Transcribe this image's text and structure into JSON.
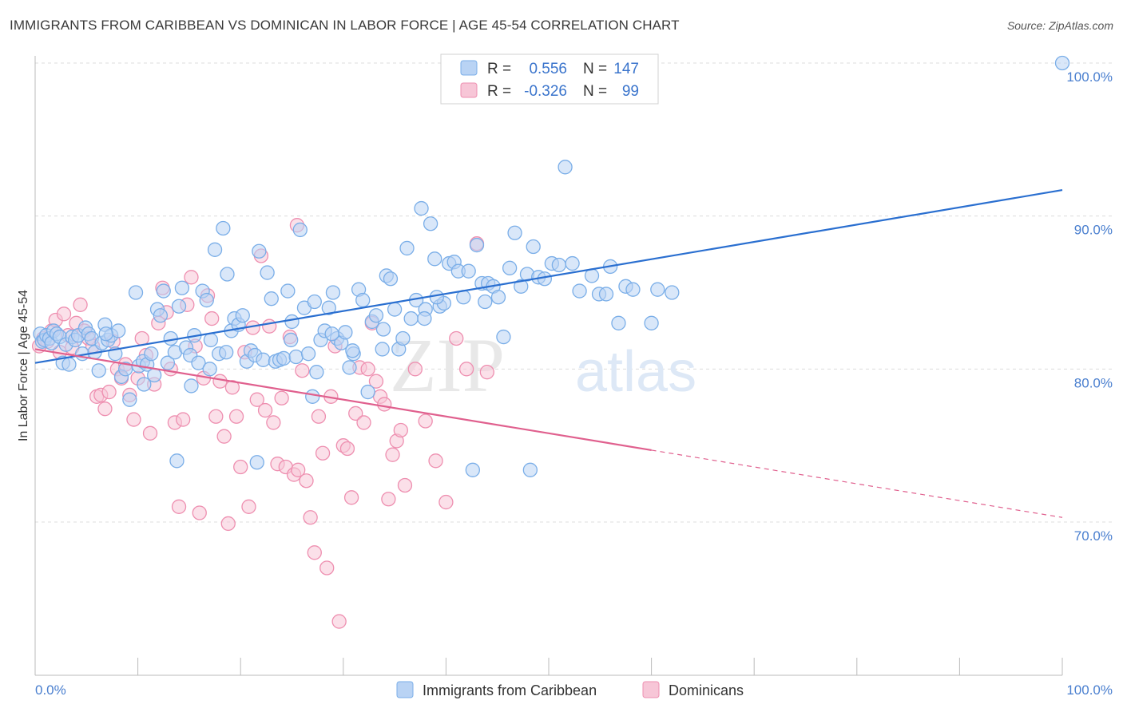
{
  "title": "IMMIGRANTS FROM CARIBBEAN VS DOMINICAN IN LABOR FORCE | AGE 45-54 CORRELATION CHART",
  "source": "Source: ZipAtlas.com",
  "watermark": {
    "zip": "ZIP",
    "atlas": "atlas"
  },
  "colors": {
    "blue": "#7aaee8",
    "blue_fill": "#b9d3f4",
    "blue_line": "#2a6fd0",
    "pink": "#ee8fb0",
    "pink_fill": "#f7c6d7",
    "pink_line": "#e0608e",
    "grid": "#dcdcdc",
    "tick_text": "#4a7fcf"
  },
  "legend": {
    "rows": [
      {
        "r_label": "R =",
        "r_value": "0.556",
        "n_label": "N =",
        "n_value": "147"
      },
      {
        "r_label": "R =",
        "r_value": "-0.326",
        "n_label": "N =",
        "n_value": "99"
      }
    ]
  },
  "chart_data": {
    "type": "scatter",
    "title": "IMMIGRANTS FROM CARIBBEAN VS DOMINICAN IN LABOR FORCE | AGE 45-54 CORRELATION CHART",
    "xlabel": "",
    "ylabel": "In Labor Force | Age 45-54",
    "xlim": [
      0,
      100
    ],
    "ylim": [
      60.5,
      101
    ],
    "x_tick_labels": [
      "0.0%",
      "100.0%"
    ],
    "y_ticks": [
      70,
      80,
      90,
      100
    ],
    "y_tick_labels": [
      "70.0%",
      "80.0%",
      "90.0%",
      "100.0%"
    ],
    "grid": true,
    "legend_position": "bottom-center",
    "series": [
      {
        "name": "Immigrants from Caribbean",
        "color": "#7aaee8",
        "trend": {
          "x": [
            0,
            100
          ],
          "y": [
            80.4,
            91.7
          ],
          "dashed_from": null
        },
        "points": [
          [
            0.5,
            82.3
          ],
          [
            0.7,
            81.8
          ],
          [
            0.9,
            81.9
          ],
          [
            1.1,
            82.2
          ],
          [
            1.4,
            82.0
          ],
          [
            1.6,
            81.7
          ],
          [
            1.8,
            82.5
          ],
          [
            2.1,
            82.3
          ],
          [
            2.4,
            82.1
          ],
          [
            2.7,
            80.4
          ],
          [
            3.0,
            81.6
          ],
          [
            3.3,
            80.3
          ],
          [
            3.6,
            82.1
          ],
          [
            3.9,
            81.9
          ],
          [
            4.2,
            82.2
          ],
          [
            4.6,
            81.0
          ],
          [
            4.9,
            82.7
          ],
          [
            5.2,
            82.3
          ],
          [
            5.5,
            82.0
          ],
          [
            5.8,
            81.1
          ],
          [
            6.2,
            79.9
          ],
          [
            6.5,
            81.7
          ],
          [
            6.8,
            82.9
          ],
          [
            7.1,
            81.9
          ],
          [
            7.4,
            82.2
          ],
          [
            7.8,
            81.0
          ],
          [
            8.1,
            82.5
          ],
          [
            8.4,
            79.5
          ],
          [
            8.8,
            80.0
          ],
          [
            9.2,
            78.0
          ],
          [
            9.8,
            85.0
          ],
          [
            10.1,
            80.2
          ],
          [
            10.5,
            80.5
          ],
          [
            10.9,
            80.3
          ],
          [
            11.3,
            81.0
          ],
          [
            11.6,
            79.6
          ],
          [
            11.9,
            83.9
          ],
          [
            12.2,
            83.5
          ],
          [
            12.5,
            85.1
          ],
          [
            12.9,
            80.4
          ],
          [
            13.2,
            82.0
          ],
          [
            13.6,
            81.1
          ],
          [
            14.0,
            84.1
          ],
          [
            14.3,
            85.3
          ],
          [
            14.7,
            81.4
          ],
          [
            15.1,
            80.9
          ],
          [
            15.5,
            82.2
          ],
          [
            15.9,
            80.4
          ],
          [
            16.3,
            85.1
          ],
          [
            16.7,
            84.5
          ],
          [
            17.1,
            81.9
          ],
          [
            17.5,
            87.8
          ],
          [
            17.9,
            81.0
          ],
          [
            18.3,
            89.2
          ],
          [
            18.7,
            86.2
          ],
          [
            19.1,
            82.5
          ],
          [
            19.4,
            83.3
          ],
          [
            19.8,
            82.9
          ],
          [
            20.2,
            83.5
          ],
          [
            20.6,
            80.5
          ],
          [
            21.0,
            81.2
          ],
          [
            21.4,
            80.9
          ],
          [
            21.8,
            87.7
          ],
          [
            22.2,
            80.6
          ],
          [
            22.6,
            86.3
          ],
          [
            23.0,
            84.6
          ],
          [
            23.4,
            80.5
          ],
          [
            23.8,
            80.6
          ],
          [
            24.2,
            80.7
          ],
          [
            24.6,
            85.1
          ],
          [
            25.0,
            83.1
          ],
          [
            25.4,
            80.8
          ],
          [
            25.8,
            89.1
          ],
          [
            26.2,
            84.0
          ],
          [
            26.6,
            81.0
          ],
          [
            27.0,
            78.2
          ],
          [
            27.4,
            79.8
          ],
          [
            27.8,
            81.9
          ],
          [
            28.2,
            82.5
          ],
          [
            28.6,
            84.0
          ],
          [
            29.0,
            85.0
          ],
          [
            29.4,
            82.0
          ],
          [
            29.8,
            81.7
          ],
          [
            30.2,
            82.4
          ],
          [
            30.6,
            80.1
          ],
          [
            31.0,
            81.0
          ],
          [
            31.5,
            85.2
          ],
          [
            31.9,
            84.5
          ],
          [
            32.4,
            78.5
          ],
          [
            32.8,
            83.1
          ],
          [
            33.2,
            83.5
          ],
          [
            33.8,
            81.3
          ],
          [
            34.2,
            86.1
          ],
          [
            34.6,
            85.9
          ],
          [
            35.0,
            83.9
          ],
          [
            35.4,
            81.3
          ],
          [
            35.8,
            82.0
          ],
          [
            36.2,
            87.9
          ],
          [
            36.6,
            83.3
          ],
          [
            37.1,
            84.5
          ],
          [
            37.6,
            90.5
          ],
          [
            38.0,
            83.9
          ],
          [
            38.5,
            89.5
          ],
          [
            38.9,
            87.2
          ],
          [
            39.4,
            84.1
          ],
          [
            39.8,
            84.3
          ],
          [
            40.3,
            86.9
          ],
          [
            40.8,
            87.0
          ],
          [
            41.2,
            86.4
          ],
          [
            41.7,
            84.7
          ],
          [
            42.2,
            86.4
          ],
          [
            42.6,
            73.4
          ],
          [
            43.0,
            88.1
          ],
          [
            43.5,
            85.6
          ],
          [
            44.1,
            85.6
          ],
          [
            44.6,
            85.4
          ],
          [
            45.1,
            84.7
          ],
          [
            45.6,
            82.1
          ],
          [
            46.2,
            86.6
          ],
          [
            46.7,
            88.9
          ],
          [
            47.3,
            85.4
          ],
          [
            47.9,
            86.2
          ],
          [
            48.5,
            88.0
          ],
          [
            49.0,
            86.0
          ],
          [
            49.6,
            85.9
          ],
          [
            50.3,
            86.9
          ],
          [
            51.0,
            86.8
          ],
          [
            51.6,
            93.2
          ],
          [
            52.3,
            86.9
          ],
          [
            53.0,
            85.1
          ],
          [
            54.2,
            86.1
          ],
          [
            54.9,
            84.9
          ],
          [
            55.6,
            84.9
          ],
          [
            56.8,
            83.0
          ],
          [
            57.5,
            85.4
          ],
          [
            58.2,
            85.2
          ],
          [
            13.8,
            74.0
          ],
          [
            21.6,
            73.9
          ],
          [
            60.6,
            85.2
          ],
          [
            62.0,
            85.0
          ],
          [
            39.1,
            84.7
          ],
          [
            30.9,
            81.2
          ],
          [
            17.0,
            80.0
          ],
          [
            48.2,
            73.4
          ],
          [
            56.0,
            86.7
          ],
          [
            24.9,
            81.9
          ],
          [
            60.0,
            83.0
          ],
          [
            27.2,
            84.4
          ],
          [
            33.9,
            82.6
          ],
          [
            37.9,
            83.3
          ],
          [
            6.9,
            82.3
          ],
          [
            10.6,
            79.0
          ],
          [
            18.6,
            81.1
          ],
          [
            15.2,
            78.9
          ],
          [
            28.9,
            82.3
          ],
          [
            43.8,
            84.4
          ],
          [
            100.0,
            100.0
          ]
        ]
      },
      {
        "name": "Dominicans",
        "color": "#ee8fb0",
        "trend": {
          "x": [
            0,
            100
          ],
          "y": [
            81.3,
            70.3
          ],
          "dashed_from": 60
        },
        "points": [
          [
            0.4,
            81.5
          ],
          [
            0.8,
            82.0
          ],
          [
            1.2,
            81.8
          ],
          [
            1.6,
            82.5
          ],
          [
            2.0,
            83.2
          ],
          [
            2.4,
            81.1
          ],
          [
            2.8,
            83.6
          ],
          [
            3.2,
            82.2
          ],
          [
            3.6,
            81.4
          ],
          [
            4.0,
            83.0
          ],
          [
            4.4,
            84.2
          ],
          [
            4.8,
            82.5
          ],
          [
            5.2,
            82.0
          ],
          [
            5.6,
            81.5
          ],
          [
            6.0,
            78.2
          ],
          [
            6.4,
            78.3
          ],
          [
            6.8,
            77.4
          ],
          [
            7.2,
            78.5
          ],
          [
            7.6,
            81.8
          ],
          [
            8.0,
            80.0
          ],
          [
            8.4,
            79.4
          ],
          [
            8.8,
            80.3
          ],
          [
            9.2,
            78.3
          ],
          [
            9.6,
            76.7
          ],
          [
            10.0,
            79.4
          ],
          [
            10.4,
            82.0
          ],
          [
            10.8,
            80.9
          ],
          [
            11.2,
            75.8
          ],
          [
            11.6,
            79.0
          ],
          [
            12.0,
            83.0
          ],
          [
            12.4,
            85.3
          ],
          [
            12.8,
            83.7
          ],
          [
            13.2,
            80.0
          ],
          [
            13.6,
            76.5
          ],
          [
            14.0,
            71.0
          ],
          [
            14.4,
            76.7
          ],
          [
            14.8,
            84.2
          ],
          [
            15.2,
            86.0
          ],
          [
            15.6,
            81.5
          ],
          [
            16.0,
            70.6
          ],
          [
            16.4,
            79.4
          ],
          [
            16.8,
            84.8
          ],
          [
            17.2,
            83.3
          ],
          [
            17.6,
            76.9
          ],
          [
            18.0,
            79.2
          ],
          [
            18.4,
            75.6
          ],
          [
            18.8,
            69.9
          ],
          [
            19.2,
            78.8
          ],
          [
            19.6,
            76.9
          ],
          [
            20.0,
            73.6
          ],
          [
            20.4,
            81.1
          ],
          [
            20.8,
            71.0
          ],
          [
            21.2,
            82.7
          ],
          [
            21.6,
            78.0
          ],
          [
            22.0,
            87.4
          ],
          [
            22.4,
            77.3
          ],
          [
            22.8,
            82.8
          ],
          [
            23.2,
            76.5
          ],
          [
            23.6,
            73.8
          ],
          [
            24.0,
            78.1
          ],
          [
            24.4,
            73.6
          ],
          [
            24.8,
            82.1
          ],
          [
            25.2,
            73.1
          ],
          [
            25.6,
            73.4
          ],
          [
            26.0,
            79.9
          ],
          [
            26.4,
            72.7
          ],
          [
            26.8,
            70.3
          ],
          [
            27.2,
            68.0
          ],
          [
            27.6,
            76.9
          ],
          [
            28.0,
            74.5
          ],
          [
            28.4,
            67.0
          ],
          [
            28.8,
            78.2
          ],
          [
            29.2,
            81.5
          ],
          [
            29.6,
            63.5
          ],
          [
            30.0,
            75.0
          ],
          [
            30.4,
            74.8
          ],
          [
            30.8,
            71.6
          ],
          [
            31.2,
            77.1
          ],
          [
            31.6,
            80.1
          ],
          [
            32.0,
            76.5
          ],
          [
            32.4,
            80.0
          ],
          [
            32.8,
            83.0
          ],
          [
            33.2,
            79.2
          ],
          [
            33.6,
            78.2
          ],
          [
            34.0,
            77.7
          ],
          [
            34.4,
            71.5
          ],
          [
            34.8,
            74.4
          ],
          [
            35.2,
            75.3
          ],
          [
            35.6,
            76.0
          ],
          [
            36.0,
            72.4
          ],
          [
            37.0,
            80.0
          ],
          [
            38.0,
            76.6
          ],
          [
            39.0,
            74.0
          ],
          [
            40.0,
            71.3
          ],
          [
            41.0,
            82.0
          ],
          [
            42.0,
            80.0
          ],
          [
            43.0,
            88.2
          ],
          [
            44.0,
            79.8
          ],
          [
            25.5,
            89.4
          ]
        ]
      }
    ]
  },
  "bottom_legend": [
    {
      "label": "Immigrants from Caribbean"
    },
    {
      "label": "Dominicans"
    }
  ]
}
